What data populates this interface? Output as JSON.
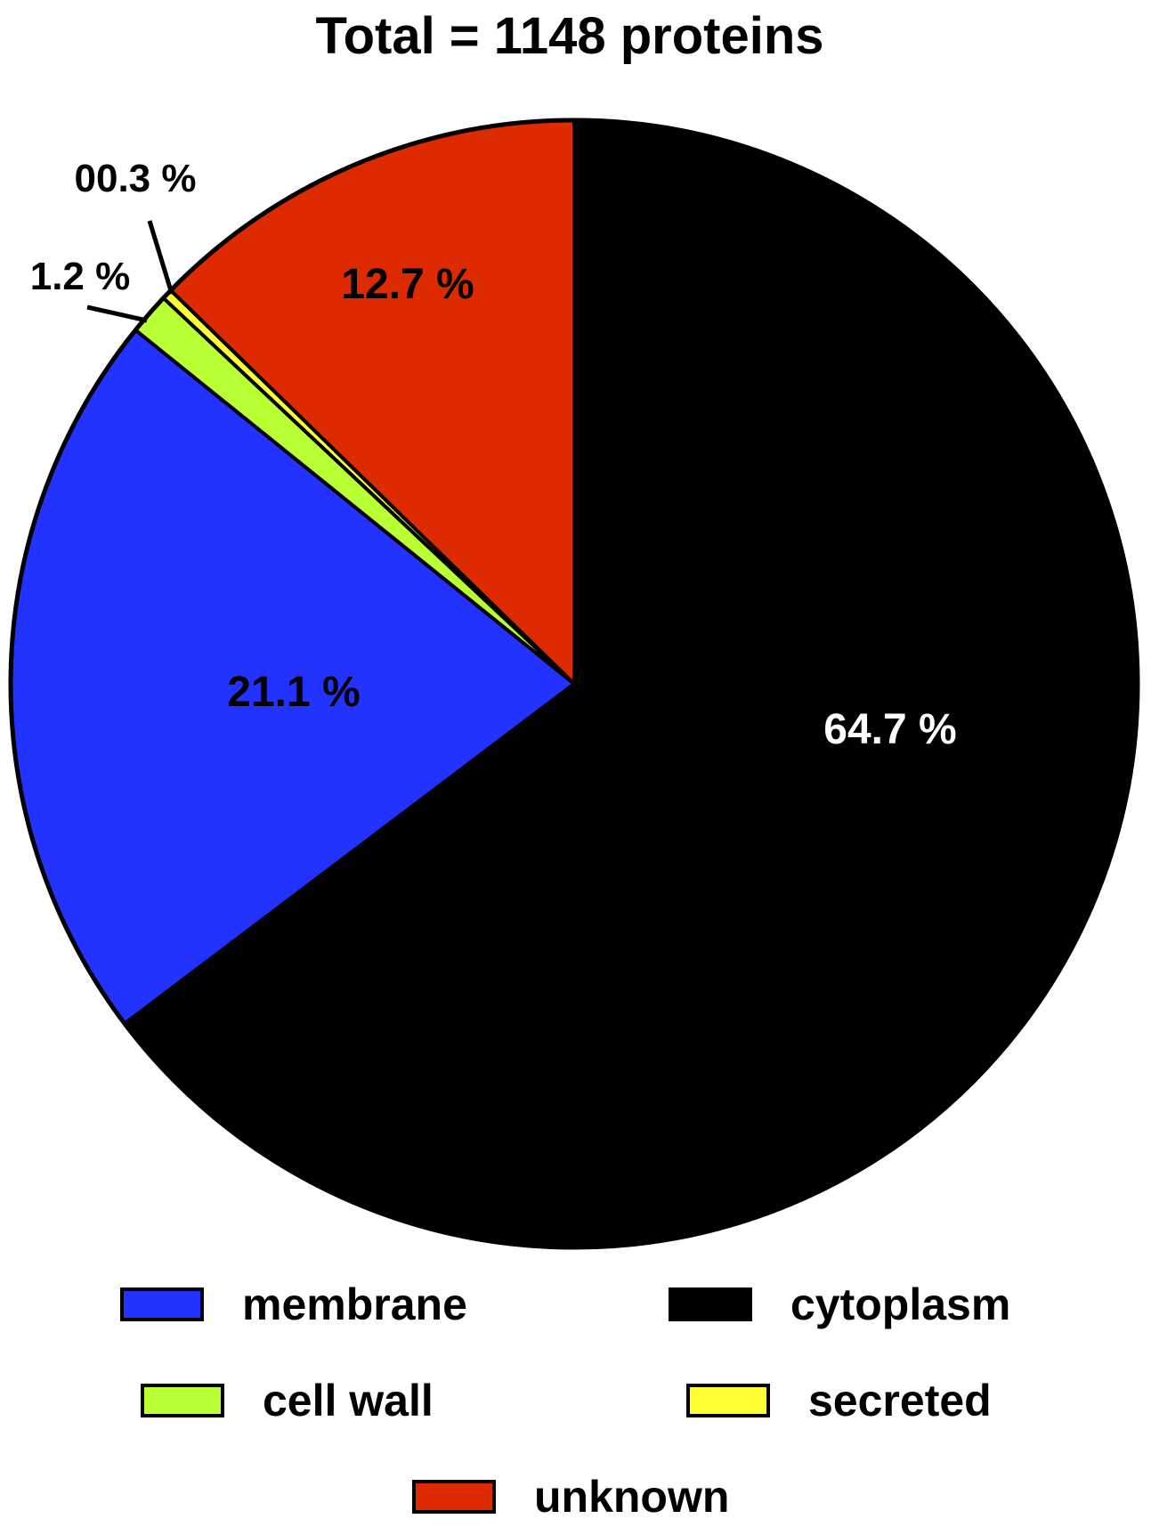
{
  "chart_data": {
    "type": "pie",
    "title": "Total = 1148 proteins",
    "start_angle_deg": 0,
    "direction": "clockwise",
    "slices": [
      {
        "name": "cytoplasm",
        "value": 64.7,
        "label": "64.7 %",
        "color": "#000000"
      },
      {
        "name": "membrane",
        "value": 21.1,
        "label": "21.1 %",
        "color": "#2233ff"
      },
      {
        "name": "cell wall",
        "value": 1.2,
        "label": "1.2 %",
        "color": "#b8ff33"
      },
      {
        "name": "secreted",
        "value": 0.3,
        "label": "00.3 %",
        "color": "#ffff33"
      },
      {
        "name": "unknown",
        "value": 12.7,
        "label": "12.7 %",
        "color": "#dd2a00"
      }
    ],
    "legend": {
      "placement": "bottom",
      "entries": [
        "membrane",
        "cytoplasm",
        "cell wall",
        "secreted",
        "unknown"
      ]
    }
  }
}
